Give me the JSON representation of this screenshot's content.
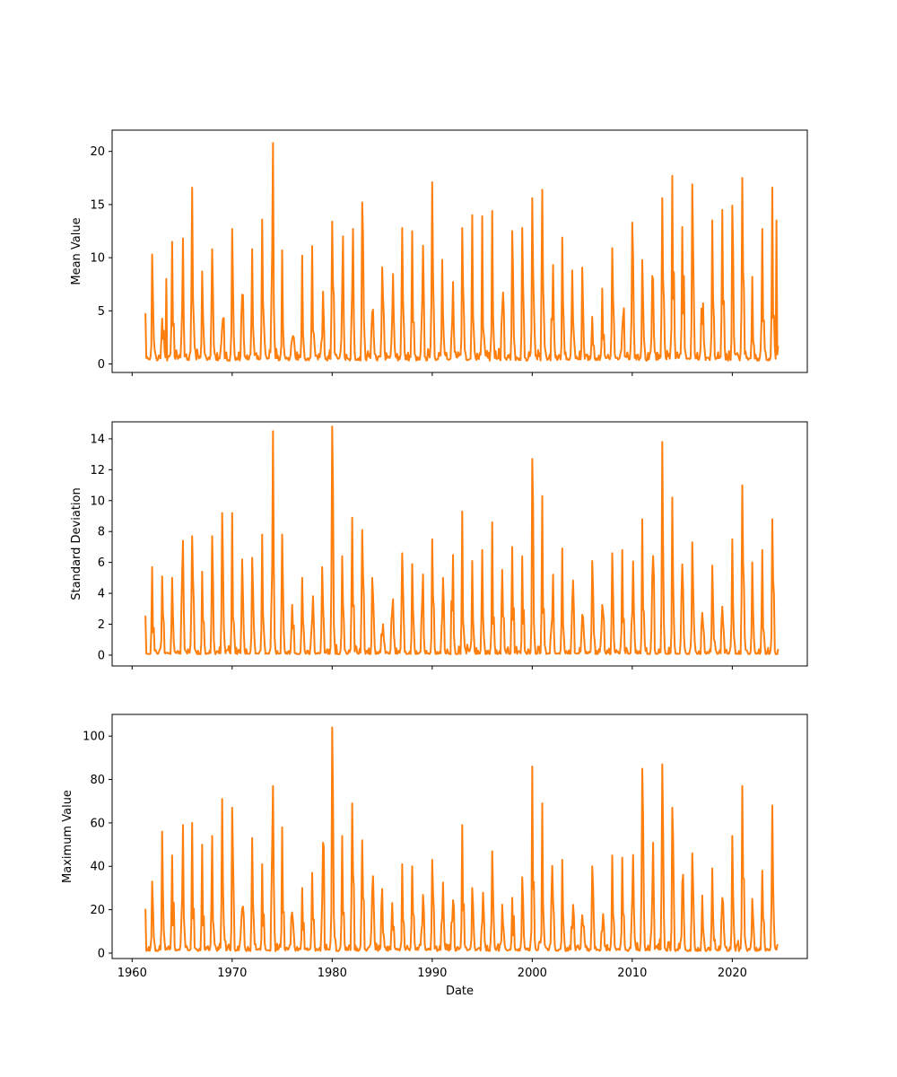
{
  "chart_data": [
    {
      "type": "line",
      "ylabel": "Mean Value",
      "xlabel": "",
      "x_start": "1961-04",
      "x_end": "2024-08",
      "xlim": [
        1958.0,
        2027.5
      ],
      "ylim": [
        -0.8,
        22
      ],
      "yticks": [
        0,
        5,
        10,
        15,
        20
      ],
      "series_color": "#ff7f0e",
      "x_tick_labels_visible": false,
      "peaks": [
        {
          "x": 1961.3,
          "y": 4.7
        },
        {
          "x": 1962.0,
          "y": 10.3
        },
        {
          "x": 1963.4,
          "y": 8.0
        },
        {
          "x": 1964.0,
          "y": 11.5
        },
        {
          "x": 1965.1,
          "y": 11.8
        },
        {
          "x": 1966.0,
          "y": 16.6
        },
        {
          "x": 1967.0,
          "y": 8.7
        },
        {
          "x": 1968.0,
          "y": 10.8
        },
        {
          "x": 1970.0,
          "y": 12.7
        },
        {
          "x": 1972.0,
          "y": 10.8
        },
        {
          "x": 1973.0,
          "y": 13.6
        },
        {
          "x": 1974.1,
          "y": 20.8
        },
        {
          "x": 1975.0,
          "y": 10.7
        },
        {
          "x": 1977.0,
          "y": 10.2
        },
        {
          "x": 1978.0,
          "y": 11.1
        },
        {
          "x": 1980.0,
          "y": 13.4
        },
        {
          "x": 1981.1,
          "y": 12.0
        },
        {
          "x": 1982.1,
          "y": 12.7
        },
        {
          "x": 1983.0,
          "y": 15.2
        },
        {
          "x": 1985.0,
          "y": 9.1
        },
        {
          "x": 1987.0,
          "y": 12.8
        },
        {
          "x": 1988.0,
          "y": 12.5
        },
        {
          "x": 1990.0,
          "y": 17.1
        },
        {
          "x": 1991.0,
          "y": 9.8
        },
        {
          "x": 1993.0,
          "y": 12.8
        },
        {
          "x": 1994.0,
          "y": 14.0
        },
        {
          "x": 1995.0,
          "y": 13.9
        },
        {
          "x": 1996.0,
          "y": 14.4
        },
        {
          "x": 1998.0,
          "y": 12.5
        },
        {
          "x": 1999.0,
          "y": 12.8
        },
        {
          "x": 2000.0,
          "y": 15.6
        },
        {
          "x": 2001.0,
          "y": 16.4
        },
        {
          "x": 2003.0,
          "y": 11.9
        },
        {
          "x": 2007.0,
          "y": 7.1
        },
        {
          "x": 2008.0,
          "y": 10.9
        },
        {
          "x": 2010.0,
          "y": 13.3
        },
        {
          "x": 2013.0,
          "y": 15.6
        },
        {
          "x": 2014.0,
          "y": 17.7
        },
        {
          "x": 2016.0,
          "y": 16.9
        },
        {
          "x": 2018.0,
          "y": 13.5
        },
        {
          "x": 2019.0,
          "y": 14.5
        },
        {
          "x": 2020.0,
          "y": 14.9
        },
        {
          "x": 2021.0,
          "y": 17.5
        },
        {
          "x": 2022.0,
          "y": 8.2
        },
        {
          "x": 2023.0,
          "y": 12.7
        },
        {
          "x": 2024.0,
          "y": 16.6
        },
        {
          "x": 2024.4,
          "y": 13.5
        }
      ],
      "baseline_low": 0.5,
      "last_value": 1.7
    },
    {
      "type": "line",
      "ylabel": "Standard Deviation",
      "xlabel": "",
      "x_start": "1961-04",
      "x_end": "2024-08",
      "xlim": [
        1958.0,
        2027.5
      ],
      "ylim": [
        -0.7,
        15.1
      ],
      "yticks": [
        0,
        2,
        4,
        6,
        8,
        10,
        12,
        14
      ],
      "series_color": "#ff7f0e",
      "x_tick_labels_visible": false,
      "peaks": [
        {
          "x": 1961.3,
          "y": 2.5
        },
        {
          "x": 1962.0,
          "y": 5.7
        },
        {
          "x": 1963.0,
          "y": 5.1
        },
        {
          "x": 1964.0,
          "y": 5.0
        },
        {
          "x": 1965.1,
          "y": 7.4
        },
        {
          "x": 1966.0,
          "y": 7.7
        },
        {
          "x": 1967.0,
          "y": 5.4
        },
        {
          "x": 1968.0,
          "y": 7.7
        },
        {
          "x": 1969.0,
          "y": 9.2
        },
        {
          "x": 1970.0,
          "y": 9.2
        },
        {
          "x": 1971.0,
          "y": 6.2
        },
        {
          "x": 1972.0,
          "y": 6.3
        },
        {
          "x": 1973.0,
          "y": 7.8
        },
        {
          "x": 1974.1,
          "y": 14.5
        },
        {
          "x": 1975.0,
          "y": 7.8
        },
        {
          "x": 1977.0,
          "y": 5.0
        },
        {
          "x": 1979.0,
          "y": 5.7
        },
        {
          "x": 1980.0,
          "y": 14.8
        },
        {
          "x": 1981.0,
          "y": 6.4
        },
        {
          "x": 1982.0,
          "y": 8.9
        },
        {
          "x": 1983.0,
          "y": 8.1
        },
        {
          "x": 1984.0,
          "y": 5.0
        },
        {
          "x": 1987.0,
          "y": 6.6
        },
        {
          "x": 1988.0,
          "y": 5.9
        },
        {
          "x": 1990.0,
          "y": 7.5
        },
        {
          "x": 1993.0,
          "y": 9.3
        },
        {
          "x": 1994.0,
          "y": 6.1
        },
        {
          "x": 1995.0,
          "y": 6.8
        },
        {
          "x": 1996.0,
          "y": 8.6
        },
        {
          "x": 1998.0,
          "y": 7.0
        },
        {
          "x": 1999.0,
          "y": 6.4
        },
        {
          "x": 2000.0,
          "y": 12.7
        },
        {
          "x": 2001.0,
          "y": 10.3
        },
        {
          "x": 2003.0,
          "y": 6.9
        },
        {
          "x": 2006.0,
          "y": 6.1
        },
        {
          "x": 2008.0,
          "y": 6.6
        },
        {
          "x": 2009.0,
          "y": 6.8
        },
        {
          "x": 2011.0,
          "y": 8.8
        },
        {
          "x": 2013.0,
          "y": 13.8
        },
        {
          "x": 2014.0,
          "y": 10.2
        },
        {
          "x": 2016.0,
          "y": 7.3
        },
        {
          "x": 2018.0,
          "y": 5.8
        },
        {
          "x": 2020.0,
          "y": 7.5
        },
        {
          "x": 2021.0,
          "y": 11.0
        },
        {
          "x": 2022.0,
          "y": 6.0
        },
        {
          "x": 2023.0,
          "y": 6.8
        },
        {
          "x": 2024.0,
          "y": 8.8
        }
      ],
      "baseline_low": 0.1,
      "last_value": 0.4
    },
    {
      "type": "line",
      "ylabel": "Maximum Value",
      "xlabel": "Date",
      "x_start": "1961-04",
      "x_end": "2024-08",
      "xlim": [
        1958.0,
        2027.5
      ],
      "ylim": [
        -2.5,
        110
      ],
      "yticks": [
        0,
        20,
        40,
        60,
        80,
        100
      ],
      "xticks": [
        1960,
        1970,
        1980,
        1990,
        2000,
        2010,
        2020
      ],
      "series_color": "#ff7f0e",
      "x_tick_labels_visible": true,
      "peaks": [
        {
          "x": 1961.3,
          "y": 20
        },
        {
          "x": 1962.0,
          "y": 33
        },
        {
          "x": 1963.0,
          "y": 56
        },
        {
          "x": 1964.0,
          "y": 45
        },
        {
          "x": 1965.1,
          "y": 59
        },
        {
          "x": 1966.0,
          "y": 60
        },
        {
          "x": 1967.0,
          "y": 50
        },
        {
          "x": 1968.0,
          "y": 54
        },
        {
          "x": 1969.0,
          "y": 71
        },
        {
          "x": 1970.0,
          "y": 67
        },
        {
          "x": 1972.0,
          "y": 53
        },
        {
          "x": 1973.0,
          "y": 41
        },
        {
          "x": 1974.1,
          "y": 77
        },
        {
          "x": 1975.0,
          "y": 58
        },
        {
          "x": 1977.0,
          "y": 30
        },
        {
          "x": 1978.0,
          "y": 37
        },
        {
          "x": 1980.0,
          "y": 104
        },
        {
          "x": 1981.0,
          "y": 54
        },
        {
          "x": 1982.0,
          "y": 69
        },
        {
          "x": 1983.0,
          "y": 52
        },
        {
          "x": 1987.0,
          "y": 41
        },
        {
          "x": 1988.0,
          "y": 40
        },
        {
          "x": 1990.0,
          "y": 43
        },
        {
          "x": 1993.0,
          "y": 59
        },
        {
          "x": 1994.0,
          "y": 30
        },
        {
          "x": 1996.0,
          "y": 47
        },
        {
          "x": 1999.0,
          "y": 35
        },
        {
          "x": 2000.0,
          "y": 86
        },
        {
          "x": 2001.0,
          "y": 69
        },
        {
          "x": 2003.0,
          "y": 43
        },
        {
          "x": 2006.0,
          "y": 40
        },
        {
          "x": 2008.0,
          "y": 45
        },
        {
          "x": 2009.0,
          "y": 44
        },
        {
          "x": 2011.0,
          "y": 85
        },
        {
          "x": 2013.0,
          "y": 87
        },
        {
          "x": 2014.0,
          "y": 67
        },
        {
          "x": 2016.0,
          "y": 46
        },
        {
          "x": 2018.0,
          "y": 39
        },
        {
          "x": 2020.0,
          "y": 54
        },
        {
          "x": 2021.0,
          "y": 77
        },
        {
          "x": 2022.0,
          "y": 25
        },
        {
          "x": 2023.0,
          "y": 38
        },
        {
          "x": 2024.0,
          "y": 68
        }
      ],
      "baseline_low": 1.5,
      "last_value": 3.5
    }
  ]
}
